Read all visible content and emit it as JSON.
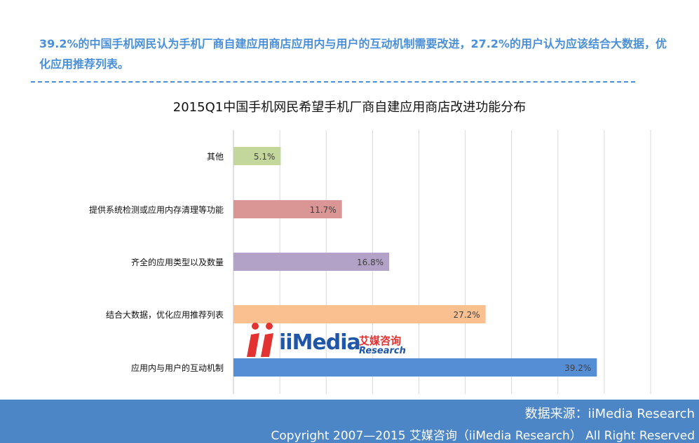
{
  "headline": "39.2%的中国手机网民认为手机厂商自建应用商店应用内与用户的互动机制需要改进，27.2%的用户认为应该结合大数据，优化应用推荐列表。",
  "footer": {
    "source": "数据来源：iiMedia Research",
    "copyright": "Copyright 2007—2015 艾媒咨询（iiMedia Research） All Right Reserved"
  },
  "logo": {
    "brand": "iiMedia",
    "cn": "艾媒咨询",
    "en": "Research"
  },
  "chart_data": {
    "type": "bar",
    "orientation": "horizontal",
    "title": "2015Q1中国手机网民希望手机厂商自建应用商店改进功能分布",
    "categories": [
      "其他",
      "提供系统检测或应用内存清理等功能",
      "齐全的应用类型以及数量",
      "结合大数据，优化应用推荐列表",
      "应用内与用户的互动机制"
    ],
    "values": [
      5.1,
      11.7,
      16.8,
      27.2,
      39.2
    ],
    "value_labels": [
      "5.1%",
      "11.7%",
      "16.8%",
      "27.2%",
      "39.2%"
    ],
    "colors": [
      "#c3d69b",
      "#d99694",
      "#b3a2c7",
      "#fac090",
      "#558ed5"
    ],
    "xlim": [
      0,
      45
    ],
    "grid": true,
    "legend": "none"
  }
}
